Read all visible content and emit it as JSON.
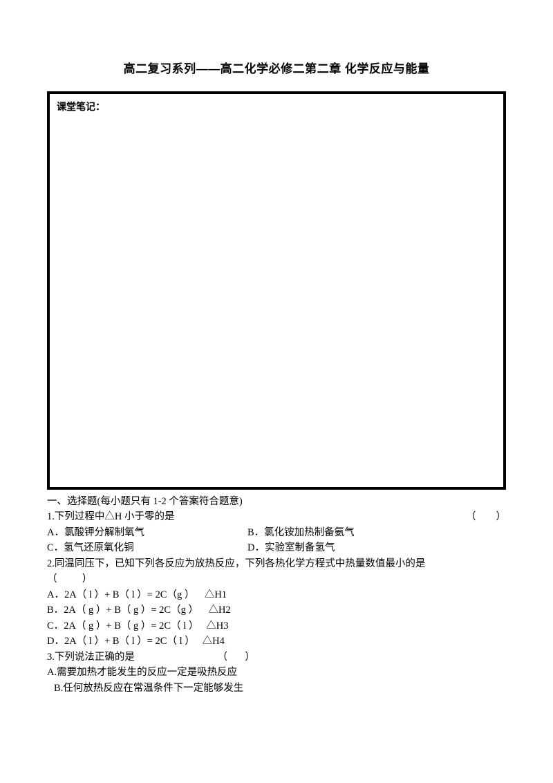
{
  "title": "高二复习系列——高二化学必修二第二章   化学反应与能量",
  "notes_label": "课堂笔记：",
  "section_heading": "一、选择题(每小题只有 1-2 个答案符合题意)",
  "q1": {
    "stem": "1.下列过程中△H 小于零的是",
    "paren": "（        ）",
    "optA": "A．氯酸钾分解制氧气",
    "optB": "B．氯化铵加热制备氨气",
    "optC": "C．氢气还原氧化铜",
    "optD": "D．实验室制备氢气"
  },
  "q2": {
    "stem": "2.同温同压下，已知下列各反应为放热反应，下列各热化学方程式中热量数值最小的是",
    "paren": "（          ）",
    "optA": "A．2A（ l ）+ B（ l ）= 2C（g ）    △H1",
    "optB": "B．2A（ g ）+ B（ g ）= 2C（g ）    △H2",
    "optC": "C．2A（ g ）+ B（ g ）= 2C（ l ）   △H3",
    "optD": "D．2A（ l ）+ B（ l ）= 2C（ l ）   △H4"
  },
  "q3": {
    "stem": "3.下列说法正确的是",
    "paren": "（       ）",
    "optA": "A.需要加热才能发生的反应一定是吸热反应",
    "optB": "B.任何放热反应在常温条件下一定能够发生"
  },
  "q3_paren_spacer": "                                 "
}
